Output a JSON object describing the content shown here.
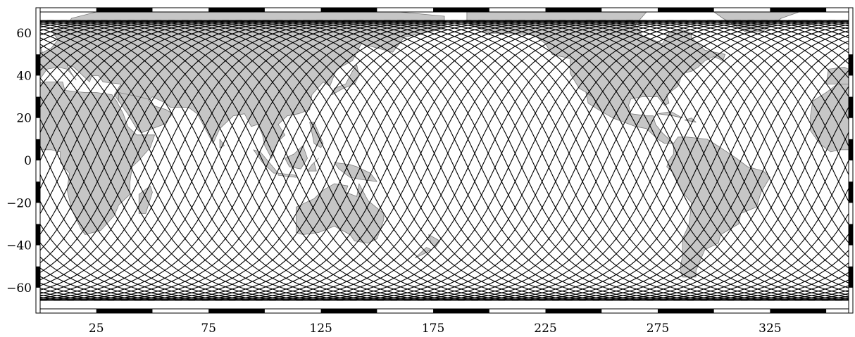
{
  "map": {
    "projection": "equirectangular",
    "lon_range": [
      0,
      360
    ],
    "lat_range": [
      -70,
      70
    ],
    "x_ticks": [
      {
        "value": 25,
        "label": "25"
      },
      {
        "value": 75,
        "label": "75"
      },
      {
        "value": 125,
        "label": "125"
      },
      {
        "value": 175,
        "label": "175"
      },
      {
        "value": 225,
        "label": "225"
      },
      {
        "value": 275,
        "label": "275"
      },
      {
        "value": 325,
        "label": "325"
      }
    ],
    "y_ticks": [
      {
        "value": 60,
        "label": "60"
      },
      {
        "value": 40,
        "label": "40"
      },
      {
        "value": 20,
        "label": "20"
      },
      {
        "value": 0,
        "label": "0"
      },
      {
        "value": -20,
        "label": "−20"
      },
      {
        "value": -40,
        "label": "−40"
      },
      {
        "value": -60,
        "label": "−60"
      }
    ],
    "border_style": "alternating black/white frame",
    "colors": {
      "land": "#c6c6c6",
      "land_stroke": "#7a7a7a",
      "ocean": "#ffffff",
      "ground_track": "#000000"
    },
    "ground_tracks": {
      "inclination_deg": 66,
      "ascending_count": 60,
      "descending_count": 60,
      "lat_coverage": [
        -66,
        66
      ]
    }
  }
}
